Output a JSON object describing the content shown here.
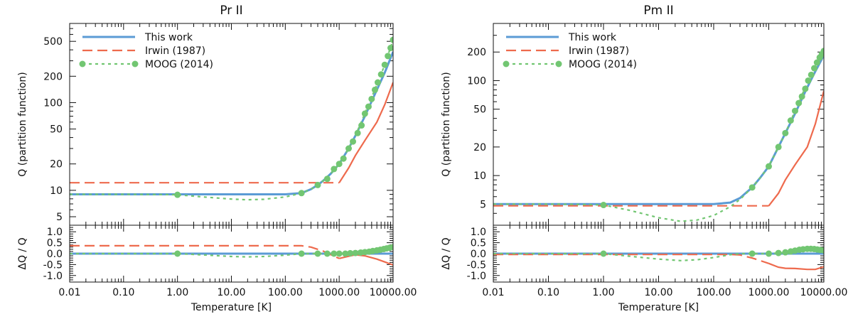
{
  "figure": {
    "description_units": "log-scale temperature axis; partition function Q (log) and relative difference dQ/Q (linear)"
  },
  "colors": {
    "this_work": "#5B9BD5",
    "irwin": "#EE6A4D",
    "moog": "#72C672",
    "axis": "#111111"
  },
  "chart_data": [
    {
      "type": "line",
      "title": "Pr II",
      "xlabel": "Temperature [K]",
      "ylabel_top": "Q (partition function)",
      "ylabel_bottom": "ΔQ / Q",
      "xscale": "log",
      "xlim": [
        0.01,
        10000
      ],
      "xticks": [
        0.01,
        0.1,
        1,
        10,
        100,
        1000,
        10000
      ],
      "xtick_labels": [
        "0.01",
        "0.10",
        "1.00",
        "10.00",
        "100.00",
        "1000.00",
        "10000.00"
      ],
      "top_yscale": "log",
      "top_ylim": [
        4,
        800
      ],
      "top_yticks": [
        5,
        10,
        20,
        50,
        100,
        200,
        500
      ],
      "bottom_ylim": [
        -1.3,
        1.3
      ],
      "bottom_yticks": [
        -1.0,
        -0.5,
        0.0,
        0.5,
        1.0
      ],
      "bottom_ytick_labels": [
        "-1.0",
        "-0.5",
        "0.0",
        "0.5",
        "1.0"
      ],
      "legend": [
        "This work",
        "Irwin (1987)",
        "MOOG (2014)"
      ],
      "legend_position": "top-left",
      "series": [
        {
          "name": "This work",
          "style": "solid",
          "color_key": "this_work",
          "x": [
            0.01,
            100,
            200,
            300,
            400,
            500,
            700,
            1000,
            1500,
            2000,
            3000,
            5000,
            7000,
            10000
          ],
          "values": [
            9.0,
            9.0,
            9.3,
            10.3,
            11.5,
            12.8,
            15.5,
            20,
            30,
            42,
            70,
            140,
            220,
            380
          ]
        },
        {
          "name": "Irwin (1987)",
          "style": "dashed",
          "color_key": "irwin",
          "x": [
            0.01,
            1000
          ],
          "values": [
            12.2,
            12.2
          ]
        },
        {
          "name": "Irwin (1987) high-T",
          "style": "solid",
          "color_key": "irwin",
          "x": [
            1000,
            1500,
            2000,
            3000,
            5000,
            7000,
            10000
          ],
          "values": [
            12.2,
            18,
            25,
            37,
            60,
            95,
            170
          ]
        },
        {
          "name": "MOOG (2014)",
          "style": "dotted",
          "color_key": "moog",
          "x": [
            0.01,
            0.1,
            0.5,
            1,
            3,
            10,
            20,
            40,
            100,
            200,
            300,
            400,
            500,
            700,
            1000,
            1500,
            2000,
            3000,
            5000,
            7000,
            10000
          ],
          "values": [
            9.0,
            9.0,
            8.95,
            8.9,
            8.4,
            7.95,
            7.8,
            7.9,
            8.4,
            9.3,
            10.3,
            11.5,
            12.8,
            15.5,
            20,
            30,
            42,
            75,
            160,
            270,
            520
          ]
        }
      ],
      "markers": {
        "name": "MOOG (2014)",
        "color_key": "moog",
        "x": [
          1,
          200,
          400,
          600,
          800,
          1000,
          1200,
          1500,
          1800,
          2200,
          2600,
          3000,
          3500,
          4000,
          4600,
          5200,
          6000,
          7000,
          8000,
          9000,
          10000
        ],
        "values": [
          8.9,
          9.3,
          11.5,
          13.5,
          17.5,
          20,
          23,
          30,
          36,
          45,
          55,
          75,
          90,
          110,
          140,
          170,
          210,
          270,
          340,
          420,
          520
        ]
      },
      "residual_series": [
        {
          "name": "This work",
          "style": "solid",
          "color_key": "this_work",
          "x": [
            0.01,
            10000
          ],
          "values": [
            0.0,
            0.0
          ]
        },
        {
          "name": "Irwin (1987)",
          "style": "dashed",
          "color_key": "irwin",
          "x": [
            0.01,
            200,
            300,
            500,
            700,
            1000
          ],
          "values": [
            0.36,
            0.36,
            0.3,
            0.12,
            -0.05,
            -0.22
          ]
        },
        {
          "name": "Irwin (1987) high-T",
          "style": "solid",
          "color_key": "irwin",
          "x": [
            1000,
            1500,
            2000,
            3000,
            5000,
            7000,
            10000
          ],
          "values": [
            -0.22,
            -0.12,
            -0.05,
            -0.1,
            -0.25,
            -0.38,
            -0.52
          ]
        },
        {
          "name": "MOOG (2014)",
          "style": "dotted",
          "color_key": "moog",
          "x": [
            0.01,
            1,
            3,
            10,
            20,
            40,
            100,
            200,
            300,
            400,
            500,
            700,
            1000,
            2000,
            3000,
            5000,
            7000,
            10000
          ],
          "values": [
            0.0,
            0.0,
            -0.06,
            -0.13,
            -0.15,
            -0.13,
            -0.07,
            0.0,
            0.0,
            0.0,
            0.0,
            0.0,
            0.0,
            0.03,
            0.07,
            0.15,
            0.22,
            0.3
          ]
        }
      ],
      "residual_markers": {
        "name": "MOOG (2014)",
        "color_key": "moog",
        "x": [
          1,
          200,
          400,
          600,
          800,
          1000,
          1300,
          1600,
          2000,
          2500,
          3000,
          3600,
          4200,
          5000,
          5800,
          6700,
          7600,
          8600,
          10000
        ],
        "values": [
          0.0,
          0.0,
          0.0,
          0.0,
          0.0,
          0.0,
          0.0,
          0.02,
          0.03,
          0.05,
          0.07,
          0.09,
          0.12,
          0.15,
          0.18,
          0.21,
          0.24,
          0.27,
          0.3
        ]
      }
    },
    {
      "type": "line",
      "title": "Pm II",
      "xlabel": "Temperature [K]",
      "ylabel_top": "Q (partition function)",
      "ylabel_bottom": "ΔQ / Q",
      "xscale": "log",
      "xlim": [
        0.01,
        10000
      ],
      "xticks": [
        0.01,
        0.1,
        1,
        10,
        100,
        1000,
        10000
      ],
      "xtick_labels": [
        "0.01",
        "0.10",
        "1.00",
        "10.00",
        "100.00",
        "1000.00",
        "10000.00"
      ],
      "top_yscale": "log",
      "top_ylim": [
        3,
        400
      ],
      "top_yticks": [
        5,
        10,
        20,
        50,
        100,
        200
      ],
      "bottom_ylim": [
        -1.3,
        1.3
      ],
      "bottom_yticks": [
        -1.0,
        -0.5,
        0.0,
        0.5,
        1.0
      ],
      "bottom_ytick_labels": [
        "-1.0",
        "-0.5",
        "0.0",
        "0.5",
        "1.0"
      ],
      "legend": [
        "This work",
        "Irwin (1987)",
        "MOOG (2014)"
      ],
      "legend_position": "top-left",
      "series": [
        {
          "name": "This work",
          "style": "solid",
          "color_key": "this_work",
          "x": [
            0.01,
            100,
            200,
            300,
            500,
            700,
            1000,
            1500,
            2000,
            3000,
            5000,
            7000,
            10000
          ],
          "values": [
            5.0,
            5.0,
            5.2,
            5.8,
            7.5,
            9.5,
            12.5,
            20,
            28,
            45,
            85,
            125,
            185
          ]
        },
        {
          "name": "Irwin (1987)",
          "style": "dashed",
          "color_key": "irwin",
          "x": [
            0.01,
            1000
          ],
          "values": [
            4.8,
            4.8
          ]
        },
        {
          "name": "Irwin (1987) high-T",
          "style": "solid",
          "color_key": "irwin",
          "x": [
            1000,
            1500,
            2000,
            3000,
            5000,
            7000,
            10000
          ],
          "values": [
            4.8,
            6.5,
            9,
            13,
            20,
            35,
            78
          ]
        },
        {
          "name": "MOOG (2014)",
          "style": "dotted",
          "color_key": "moog",
          "x": [
            0.01,
            0.1,
            0.5,
            1,
            3,
            10,
            25,
            50,
            100,
            200,
            300,
            500,
            700,
            1000,
            1500,
            2000,
            3000,
            5000,
            7000,
            10000
          ],
          "values": [
            5.0,
            5.0,
            4.95,
            4.9,
            4.3,
            3.6,
            3.3,
            3.4,
            3.8,
            4.7,
            5.6,
            7.5,
            9.5,
            12.5,
            20,
            28,
            48,
            95,
            145,
            205
          ]
        }
      ],
      "markers": {
        "name": "MOOG (2014)",
        "color_key": "moog",
        "x": [
          1,
          500,
          1000,
          1500,
          2000,
          2500,
          3000,
          3500,
          4000,
          4600,
          5200,
          5900,
          6700,
          7500,
          8400,
          9200,
          10000
        ],
        "values": [
          4.9,
          7.5,
          12.5,
          20,
          28,
          38,
          48,
          58,
          68,
          82,
          100,
          115,
          135,
          155,
          175,
          190,
          205
        ]
      },
      "residual_series": [
        {
          "name": "This work",
          "style": "solid",
          "color_key": "this_work",
          "x": [
            0.01,
            10000
          ],
          "values": [
            0.0,
            0.0
          ]
        },
        {
          "name": "Irwin (1987)",
          "style": "dashed",
          "color_key": "irwin",
          "x": [
            0.01,
            200,
            300,
            500,
            700,
            1000
          ],
          "values": [
            -0.04,
            -0.04,
            -0.06,
            -0.2,
            -0.32,
            -0.45
          ]
        },
        {
          "name": "Irwin (1987) high-T",
          "style": "solid",
          "color_key": "irwin",
          "x": [
            1000,
            1500,
            2000,
            3000,
            5000,
            7000,
            10000
          ],
          "values": [
            -0.45,
            -0.62,
            -0.67,
            -0.68,
            -0.72,
            -0.72,
            -0.6
          ]
        },
        {
          "name": "MOOG (2014)",
          "style": "dotted",
          "color_key": "moog",
          "x": [
            0.01,
            1,
            3,
            10,
            25,
            50,
            100,
            200,
            300,
            500,
            1000,
            2000,
            3000,
            5000,
            7000,
            10000
          ],
          "values": [
            0.0,
            0.0,
            -0.12,
            -0.25,
            -0.32,
            -0.28,
            -0.18,
            -0.05,
            0.0,
            0.0,
            0.0,
            0.05,
            0.15,
            0.22,
            0.2,
            0.15
          ]
        }
      ],
      "residual_markers": {
        "name": "MOOG (2014)",
        "color_key": "moog",
        "x": [
          1,
          500,
          1000,
          1500,
          2000,
          2500,
          3000,
          3600,
          4200,
          5000,
          5800,
          6700,
          7600,
          8600,
          10000
        ],
        "values": [
          0.0,
          0.0,
          0.0,
          0.03,
          0.06,
          0.1,
          0.14,
          0.18,
          0.2,
          0.22,
          0.22,
          0.21,
          0.19,
          0.17,
          0.15
        ]
      }
    }
  ]
}
